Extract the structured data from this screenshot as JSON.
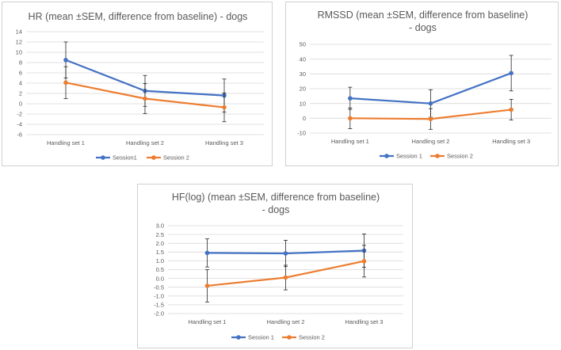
{
  "chart_data": [
    {
      "type": "line",
      "title_lines": [
        "HR (mean ±SEM, difference from baseline) - dogs"
      ],
      "categories": [
        "Handling set 1",
        "Handling set 2",
        "Handling set 3"
      ],
      "ylim": [
        -6,
        14
      ],
      "yticks": [
        -6,
        -4,
        -2,
        0,
        2,
        4,
        6,
        8,
        10,
        12,
        14
      ],
      "xlabel": "",
      "ylabel": "",
      "legend_position": "bottom",
      "series": [
        {
          "name": "Session1",
          "color": "#4472C4",
          "values": [
            8.5,
            2.5,
            1.6
          ],
          "err": [
            3.5,
            3.0,
            3.2
          ]
        },
        {
          "name": "Session 2",
          "color": "#ED7D31",
          "values": [
            4.1,
            1.0,
            -0.7
          ],
          "err": [
            3.1,
            2.9,
            2.8
          ]
        }
      ]
    },
    {
      "type": "line",
      "title_lines": [
        "RMSSD (mean ±SEM, difference from baseline)",
        "- dogs"
      ],
      "categories": [
        "Handling set 1",
        "Handling set 2",
        "Handling set 3"
      ],
      "ylim": [
        -10,
        50
      ],
      "yticks": [
        -10,
        0,
        10,
        20,
        30,
        40,
        50
      ],
      "xlabel": "",
      "ylabel": "",
      "legend_position": "bottom",
      "series": [
        {
          "name": "Session 1",
          "color": "#4472C4",
          "values": [
            13.5,
            10.0,
            30.5
          ],
          "err": [
            7.5,
            9.3,
            12.0
          ]
        },
        {
          "name": "Session 2",
          "color": "#ED7D31",
          "values": [
            0.0,
            -0.5,
            5.8
          ],
          "err": [
            7.0,
            7.0,
            7.0
          ]
        }
      ]
    },
    {
      "type": "line",
      "title_lines": [
        "HF(log) (mean ±SEM, difference from baseline)",
        "- dogs"
      ],
      "categories": [
        "Handling set 1",
        "Handling set 2",
        "Handling set 3"
      ],
      "ylim": [
        -2.0,
        3.0
      ],
      "yticks": [
        -2.0,
        -1.5,
        -1.0,
        -0.5,
        0.0,
        0.5,
        1.0,
        1.5,
        2.0,
        2.5,
        3.0
      ],
      "xlabel": "",
      "ylabel": "",
      "legend_position": "bottom",
      "series": [
        {
          "name": "Session 1",
          "color": "#4472C4",
          "values": [
            1.45,
            1.42,
            1.58
          ],
          "err": [
            0.8,
            0.75,
            0.95
          ]
        },
        {
          "name": "Session 2",
          "color": "#ED7D31",
          "values": [
            -0.42,
            0.05,
            0.98
          ],
          "err": [
            0.92,
            0.7,
            0.9
          ]
        }
      ]
    }
  ]
}
